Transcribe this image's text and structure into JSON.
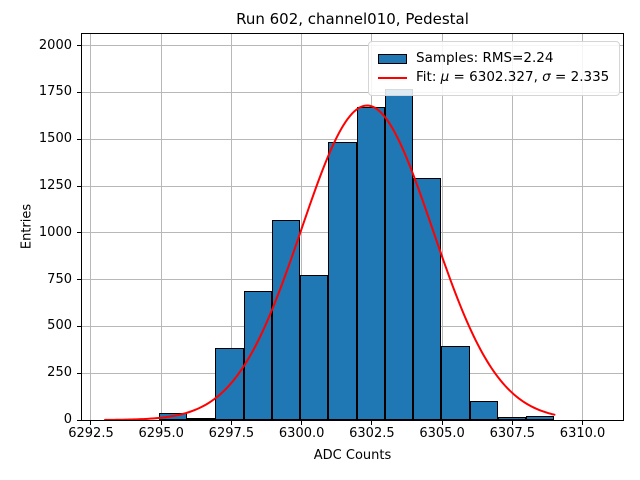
{
  "title": "Run 602, channel010, Pedestal",
  "axes": {
    "xlabel": "ADC Counts",
    "ylabel": "Entries"
  },
  "legend": {
    "samples": "Samples: RMS=2.24",
    "fit": {
      "prefix": "Fit: ",
      "mu": "μ",
      "mid": " = 6302.327, ",
      "sigma": "σ",
      "suffix": " = 2.335"
    }
  },
  "colors": {
    "bar_fill": "#1f77b4",
    "bar_edge": "#000000",
    "fit_line": "#ff0000",
    "grid": "#b8b8b8",
    "spine": "#000000"
  },
  "chart_data": {
    "type": "bar",
    "subtype": "histogram",
    "title": "Run 602, channel010, Pedestal",
    "xlabel": "ADC Counts",
    "ylabel": "Entries",
    "bin_edges": [
      6294.92,
      6295.93,
      6296.93,
      6297.94,
      6298.94,
      6299.95,
      6300.95,
      6301.96,
      6302.96,
      6303.97,
      6304.97,
      6305.98,
      6306.98,
      6307.99,
      6308.99
    ],
    "counts": [
      35,
      10,
      383,
      688,
      1066,
      774,
      1486,
      1671,
      1766,
      1294,
      395,
      104,
      15,
      24
    ],
    "fit": {
      "type": "gaussian",
      "mu": 6302.327,
      "sigma": 2.335,
      "amplitude": 1680,
      "x_range": [
        6293.0,
        6309.0
      ]
    },
    "xlim": [
      6292.18,
      6311.44
    ],
    "ylim": [
      0,
      2062
    ],
    "x_ticks": [
      6292.5,
      6295.0,
      6297.5,
      6300.0,
      6302.5,
      6305.0,
      6307.5,
      6310.0
    ],
    "x_tick_labels": [
      "6292.5",
      "6295.0",
      "6297.5",
      "6300.0",
      "6302.5",
      "6305.0",
      "6307.5",
      "6310.0"
    ],
    "y_ticks": [
      0,
      250,
      500,
      750,
      1000,
      1250,
      1500,
      1750,
      2000
    ],
    "y_tick_labels": [
      "0",
      "250",
      "500",
      "750",
      "1000",
      "1250",
      "1500",
      "1750",
      "2000"
    ],
    "grid": true,
    "legend_loc": "upper right"
  }
}
